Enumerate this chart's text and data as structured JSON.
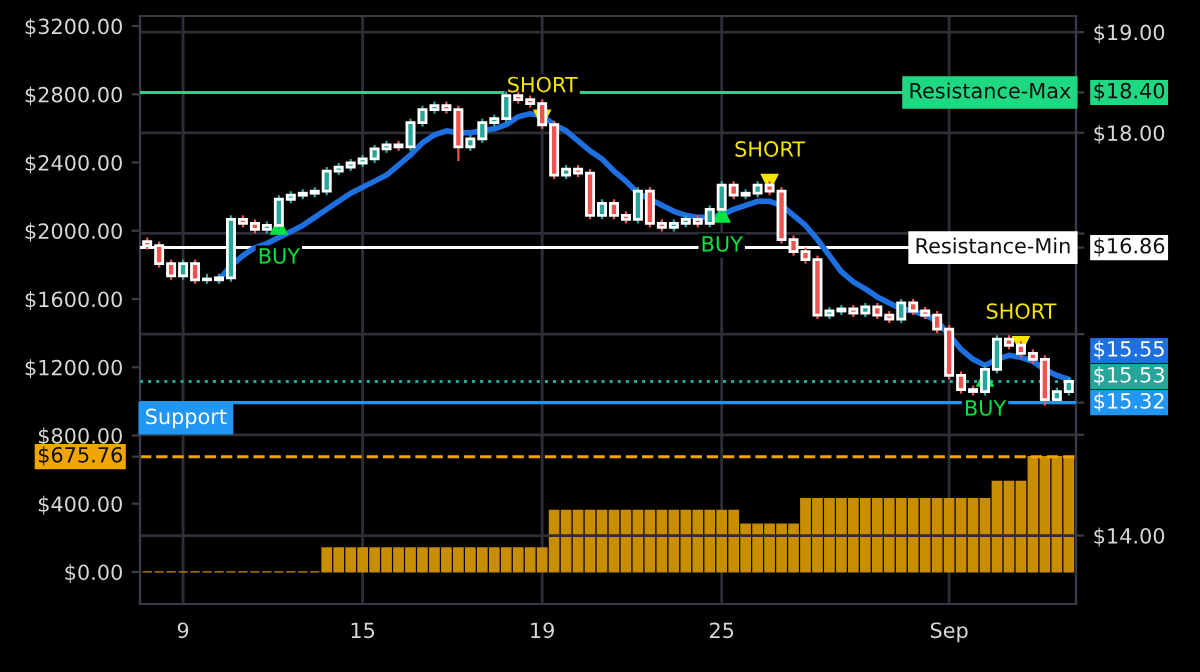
{
  "chart_data": {
    "type": "candlestick",
    "categories": [
      null,
      null,
      null,
      "9",
      null,
      null,
      null,
      null,
      null,
      null,
      null,
      null,
      null,
      null,
      null,
      null,
      null,
      null,
      "15",
      null,
      null,
      null,
      null,
      null,
      null,
      null,
      null,
      null,
      null,
      null,
      null,
      null,
      null,
      "19",
      null,
      null,
      null,
      null,
      null,
      null,
      null,
      null,
      null,
      null,
      null,
      null,
      null,
      null,
      "25",
      null,
      null,
      null,
      null,
      null,
      null,
      null,
      null,
      null,
      null,
      null,
      null,
      null,
      null,
      null,
      null,
      null,
      null,
      "Sep",
      null,
      null,
      null,
      null,
      null,
      null,
      null,
      null,
      null,
      null
    ],
    "ylim": [
      -188,
      3259
    ],
    "yticks": [
      {
        "value": 0,
        "label": "$0.00"
      },
      {
        "value": 400,
        "label": "$400.00"
      },
      {
        "value": 675.76,
        "label": "$675.76"
      },
      {
        "value": 800,
        "label": "$800.00"
      },
      {
        "value": 1200,
        "label": "$1200.00"
      },
      {
        "value": 1600,
        "label": "$1600.00"
      },
      {
        "value": 2000,
        "label": "$2000.00"
      },
      {
        "value": 2400,
        "label": "$2400.00"
      },
      {
        "value": 2800,
        "label": "$2800.00"
      },
      {
        "value": 3200,
        "label": "$3200.00"
      }
    ],
    "y2lim": [
      13.32,
      19.16
    ],
    "y2ticks": [
      {
        "value": 14,
        "label": "$14.00"
      },
      {
        "value": 15,
        "label": null
      },
      {
        "value": 15.32,
        "label": "$15.32"
      },
      {
        "value": 16,
        "label": null
      },
      {
        "value": 16.86,
        "label": "$16.86"
      },
      {
        "value": 17,
        "label": null
      },
      {
        "value": 18,
        "label": "$18.00"
      },
      {
        "value": 18.4,
        "label": "$18.40"
      },
      {
        "value": 19,
        "label": "$19.00"
      }
    ],
    "grid": true,
    "legend": false,
    "annotations": [
      "$15.53",
      "$15.55"
    ],
    "series": [
      {
        "type": "bar",
        "axis": "y",
        "color": "#c98d00",
        "values": [
          0,
          0,
          0,
          0,
          0,
          0,
          0,
          0,
          0,
          0,
          0,
          0,
          0,
          0,
          0,
          140,
          140,
          140,
          140,
          140,
          140,
          140,
          140,
          140,
          140,
          140,
          140,
          140,
          140,
          140,
          140,
          140,
          140,
          140,
          360,
          360,
          360,
          360,
          360,
          360,
          360,
          360,
          360,
          360,
          360,
          360,
          360,
          360,
          360,
          360,
          280,
          280,
          280,
          280,
          280,
          430,
          430,
          430,
          430,
          430,
          430,
          430,
          430,
          430,
          430,
          430,
          430,
          430,
          430,
          430,
          430,
          530,
          530,
          530,
          675.76,
          675.76,
          675.76,
          675.76
        ]
      },
      {
        "axis": "y2",
        "colors": [
          "#ef5350",
          "#ef5350",
          "#ef5350",
          "#26a69a",
          "#ef5350",
          "#26a69a",
          "#26a69a",
          "#26a69a",
          "#ef5350",
          "#ef5350",
          "#26a69a",
          "#26a69a",
          "#26a69a",
          "#26a69a",
          "#26a69a",
          "#26a69a",
          "#26a69a",
          "#26a69a",
          "#26a69a",
          "#26a69a",
          "#26a69a",
          "#ef5350",
          "#26a69a",
          "#26a69a",
          "#26a69a",
          "#ef5350",
          "#ef5350",
          "#26a69a",
          "#26a69a",
          "#26a69a",
          "#26a69a",
          "#ef5350",
          "#ef5350",
          "#ef5350",
          "#ef5350",
          "#26a69a",
          "#ef5350",
          "#ef5350",
          "#26a69a",
          "#ef5350",
          "#ef5350",
          "#26a69a",
          "#ef5350",
          "#ef5350",
          "#26a69a",
          "#26a69a",
          "#ef5350",
          "#26a69a",
          "#26a69a",
          "#ef5350",
          "#26a69a",
          "#26a69a",
          "#ef5350",
          "#ef5350",
          "#ef5350",
          "#ef5350",
          "#ef5350",
          "#26a69a",
          "#26a69a",
          "#ef5350",
          "#26a69a",
          "#ef5350",
          "#ef5350",
          "#26a69a",
          "#ef5350",
          "#ef5350",
          "#ef5350",
          "#ef5350",
          "#ef5350",
          "#ef5350",
          "#26a69a",
          "#26a69a",
          "#ef5350",
          "#ef5350",
          "#ef5350",
          "#ef5350",
          "#26a69a",
          "#26a69a"
        ],
        "ohlc": [
          [
            16.92,
            16.96,
            16.84,
            16.88
          ],
          [
            16.88,
            16.92,
            16.66,
            16.7
          ],
          [
            16.7,
            16.74,
            16.54,
            16.58
          ],
          [
            16.58,
            16.74,
            16.54,
            16.7
          ],
          [
            16.7,
            16.74,
            16.5,
            16.54
          ],
          [
            16.54,
            16.6,
            16.5,
            16.54
          ],
          [
            16.54,
            16.6,
            16.5,
            16.56
          ],
          [
            16.56,
            17.18,
            16.52,
            17.14
          ],
          [
            17.14,
            17.18,
            17.06,
            17.1
          ],
          [
            17.1,
            17.14,
            17.0,
            17.04
          ],
          [
            17.04,
            17.12,
            17.0,
            17.08
          ],
          [
            17.08,
            17.38,
            17.04,
            17.34
          ],
          [
            17.34,
            17.42,
            17.3,
            17.38
          ],
          [
            17.38,
            17.44,
            17.34,
            17.4
          ],
          [
            17.4,
            17.46,
            17.36,
            17.42
          ],
          [
            17.42,
            17.66,
            17.38,
            17.62
          ],
          [
            17.62,
            17.7,
            17.58,
            17.66
          ],
          [
            17.66,
            17.74,
            17.62,
            17.7
          ],
          [
            17.7,
            17.78,
            17.66,
            17.74
          ],
          [
            17.74,
            17.88,
            17.7,
            17.84
          ],
          [
            17.84,
            17.92,
            17.8,
            17.88
          ],
          [
            17.88,
            17.92,
            17.82,
            17.86
          ],
          [
            17.86,
            18.14,
            17.82,
            18.1
          ],
          [
            18.1,
            18.27,
            18.06,
            18.23
          ],
          [
            18.23,
            18.31,
            18.19,
            18.27
          ],
          [
            18.27,
            18.31,
            18.19,
            18.23
          ],
          [
            18.23,
            18.27,
            17.72,
            17.86
          ],
          [
            17.86,
            17.98,
            17.82,
            17.94
          ],
          [
            17.94,
            18.14,
            17.9,
            18.1
          ],
          [
            18.1,
            18.18,
            18.06,
            18.14
          ],
          [
            18.14,
            18.41,
            18.1,
            18.37
          ],
          [
            18.37,
            18.41,
            18.29,
            18.33
          ],
          [
            18.33,
            18.37,
            18.25,
            18.29
          ],
          [
            18.29,
            18.33,
            18.04,
            18.08
          ],
          [
            18.08,
            18.12,
            17.54,
            17.58
          ],
          [
            17.58,
            17.68,
            17.54,
            17.64
          ],
          [
            17.64,
            17.68,
            17.56,
            17.6
          ],
          [
            17.6,
            17.64,
            17.14,
            17.18
          ],
          [
            17.18,
            17.34,
            17.14,
            17.3
          ],
          [
            17.3,
            17.34,
            17.14,
            17.18
          ],
          [
            17.18,
            17.22,
            17.1,
            17.14
          ],
          [
            17.14,
            17.46,
            17.1,
            17.42
          ],
          [
            17.42,
            17.46,
            17.06,
            17.1
          ],
          [
            17.1,
            17.14,
            17.02,
            17.06
          ],
          [
            17.06,
            17.14,
            17.02,
            17.1
          ],
          [
            17.1,
            17.18,
            17.06,
            17.14
          ],
          [
            17.14,
            17.18,
            17.06,
            17.1
          ],
          [
            17.1,
            17.28,
            17.06,
            17.24
          ],
          [
            17.24,
            17.52,
            17.2,
            17.48
          ],
          [
            17.48,
            17.52,
            17.34,
            17.38
          ],
          [
            17.38,
            17.44,
            17.34,
            17.4
          ],
          [
            17.4,
            17.52,
            17.36,
            17.48
          ],
          [
            17.48,
            17.52,
            17.38,
            17.42
          ],
          [
            17.42,
            17.46,
            16.9,
            16.94
          ],
          [
            16.94,
            16.98,
            16.78,
            16.82
          ],
          [
            16.82,
            16.86,
            16.7,
            16.74
          ],
          [
            16.74,
            16.78,
            16.15,
            16.19
          ],
          [
            16.19,
            16.27,
            16.15,
            16.23
          ],
          [
            16.23,
            16.29,
            16.19,
            16.25
          ],
          [
            16.25,
            16.29,
            16.17,
            16.21
          ],
          [
            16.21,
            16.31,
            16.17,
            16.27
          ],
          [
            16.27,
            16.31,
            16.15,
            16.19
          ],
          [
            16.19,
            16.23,
            16.11,
            16.15
          ],
          [
            16.15,
            16.35,
            16.11,
            16.31
          ],
          [
            16.31,
            16.35,
            16.19,
            16.23
          ],
          [
            16.23,
            16.27,
            16.15,
            16.19
          ],
          [
            16.19,
            16.23,
            16.01,
            16.05
          ],
          [
            16.05,
            16.09,
            15.55,
            15.59
          ],
          [
            15.59,
            15.63,
            15.41,
            15.45
          ],
          [
            15.45,
            15.49,
            15.39,
            15.43
          ],
          [
            15.43,
            15.69,
            15.39,
            15.65
          ],
          [
            15.65,
            15.99,
            15.61,
            15.95
          ],
          [
            15.95,
            15.99,
            15.85,
            15.89
          ],
          [
            15.89,
            15.93,
            15.77,
            15.81
          ],
          [
            15.81,
            15.85,
            15.71,
            15.75
          ],
          [
            15.75,
            15.79,
            15.29,
            15.35
          ],
          [
            15.35,
            15.47,
            15.31,
            15.43
          ],
          [
            15.43,
            15.57,
            15.39,
            15.53
          ]
        ]
      },
      {
        "type": "line",
        "axis": "y2",
        "color": "#1e6fe0",
        "values": [
          null,
          null,
          null,
          null,
          null,
          null,
          16.54,
          16.68,
          16.78,
          16.86,
          16.9,
          16.96,
          17.02,
          17.08,
          17.16,
          17.24,
          17.32,
          17.4,
          17.46,
          17.52,
          17.58,
          17.68,
          17.78,
          17.9,
          17.98,
          18.02,
          18.0,
          18.0,
          18.02,
          18.04,
          18.08,
          18.16,
          18.19,
          18.17,
          18.08,
          18.02,
          17.92,
          17.82,
          17.74,
          17.62,
          17.52,
          17.4,
          17.34,
          17.28,
          17.22,
          17.18,
          17.16,
          17.16,
          17.18,
          17.24,
          17.28,
          17.32,
          17.32,
          17.28,
          17.18,
          17.08,
          16.94,
          16.78,
          16.62,
          16.52,
          16.45,
          16.37,
          16.31,
          16.25,
          16.23,
          16.19,
          16.13,
          15.99,
          15.85,
          15.75,
          15.69,
          15.75,
          15.79,
          15.77,
          15.73,
          15.65,
          15.59,
          15.55
        ]
      },
      {
        "type": "scatter",
        "axis": "y2",
        "color": "#00e640",
        "marker": "triangle",
        "values": [
          null,
          null,
          null,
          null,
          null,
          null,
          null,
          null,
          null,
          null,
          null,
          17.08,
          null,
          null,
          null,
          null,
          null,
          null,
          null,
          null,
          null,
          null,
          null,
          null,
          null,
          null,
          null,
          null,
          null,
          null,
          null,
          null,
          null,
          null,
          null,
          null,
          null,
          null,
          null,
          null,
          null,
          null,
          null,
          null,
          null,
          null,
          null,
          null,
          17.2,
          null,
          null,
          null,
          null,
          null,
          null,
          null,
          null,
          null,
          null,
          null,
          null,
          null,
          null,
          null,
          null,
          null,
          null,
          null,
          null,
          null,
          15.57,
          null,
          null,
          null,
          null,
          null,
          null,
          null
        ],
        "value_labels": [
          null,
          null,
          null,
          null,
          null,
          null,
          null,
          null,
          null,
          null,
          null,
          "BUY",
          null,
          null,
          null,
          null,
          null,
          null,
          null,
          null,
          null,
          null,
          null,
          null,
          null,
          null,
          null,
          null,
          null,
          null,
          null,
          null,
          null,
          null,
          null,
          null,
          null,
          null,
          null,
          null,
          null,
          null,
          null,
          null,
          null,
          null,
          null,
          null,
          "BUY",
          null,
          null,
          null,
          null,
          null,
          null,
          null,
          null,
          null,
          null,
          null,
          null,
          null,
          null,
          null,
          null,
          null,
          null,
          null,
          null,
          null,
          "BUY",
          null,
          null,
          null,
          null,
          null,
          null,
          null
        ]
      },
      {
        "type": "scatter",
        "axis": "y2",
        "color": "#f5e400",
        "marker": "triangle-down",
        "values": [
          null,
          null,
          null,
          null,
          null,
          null,
          null,
          null,
          null,
          null,
          null,
          null,
          null,
          null,
          null,
          null,
          null,
          null,
          null,
          null,
          null,
          null,
          null,
          null,
          null,
          null,
          null,
          null,
          null,
          null,
          null,
          null,
          null,
          18.14,
          null,
          null,
          null,
          null,
          null,
          null,
          null,
          null,
          null,
          null,
          null,
          null,
          null,
          null,
          null,
          null,
          null,
          null,
          17.5,
          null,
          null,
          null,
          null,
          null,
          null,
          null,
          null,
          null,
          null,
          null,
          null,
          null,
          null,
          null,
          null,
          null,
          null,
          null,
          null,
          15.89,
          null,
          null,
          null,
          null
        ],
        "value_labels": [
          null,
          null,
          null,
          null,
          null,
          null,
          null,
          null,
          null,
          null,
          null,
          null,
          null,
          null,
          null,
          null,
          null,
          null,
          null,
          null,
          null,
          null,
          null,
          null,
          null,
          null,
          null,
          null,
          null,
          null,
          null,
          null,
          null,
          "SHORT",
          null,
          null,
          null,
          null,
          null,
          null,
          null,
          null,
          null,
          null,
          null,
          null,
          null,
          null,
          null,
          null,
          null,
          null,
          "SHORT",
          null,
          null,
          null,
          null,
          null,
          null,
          null,
          null,
          null,
          null,
          null,
          null,
          null,
          null,
          null,
          null,
          null,
          null,
          null,
          null,
          "SHORT",
          null,
          null,
          null,
          null
        ]
      }
    ],
    "ref_lines": [
      {
        "axis": "y2",
        "value": 18.4,
        "label": "Resistance-Max",
        "color": "#1fd882",
        "line_style": "solid"
      },
      {
        "axis": "y2",
        "value": 16.86,
        "label": "Resistance-Min",
        "color": "#ffffff",
        "line_style": "solid"
      },
      {
        "axis": "y2",
        "value": 15.53,
        "color": "#26a69a",
        "line_style": "dotted"
      },
      {
        "axis": "y2",
        "value": 15.32,
        "label": "Support",
        "color": "#2196f3",
        "line_style": "solid"
      },
      {
        "axis": "y",
        "value": 675.76,
        "color": "#f0a500",
        "line_style": "dashed"
      }
    ]
  }
}
